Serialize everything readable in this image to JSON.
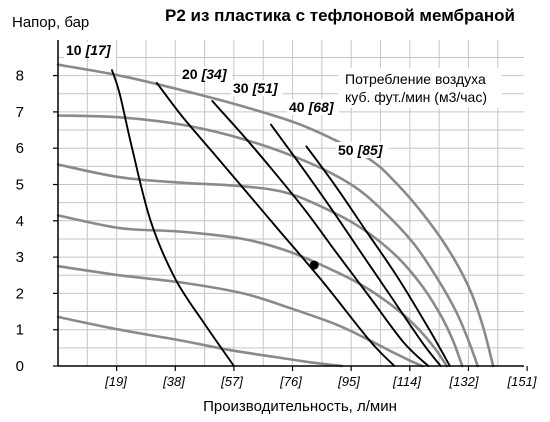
{
  "chart_data": {
    "type": "line",
    "title": "P2 из пластика с тефлоновой мембраной",
    "ylabel": "Напор, бар",
    "xlabel": "Производительность, л/мин",
    "xlim": [
      0,
      151
    ],
    "ylim": [
      0,
      9
    ],
    "grid": true,
    "y_ticks": [
      "0",
      "1",
      "2",
      "3",
      "4",
      "5",
      "6",
      "7",
      "8"
    ],
    "x_ticks": [
      "[19]",
      "[38]",
      "[57]",
      "[76]",
      "[95]",
      "[114]",
      "[132]",
      "[151]"
    ],
    "annotation": {
      "line1": "Потребление воздуха",
      "line2": "куб. фут./мин (м3/час)"
    },
    "pressure_series": [
      {
        "x": [
          0,
          20,
          40,
          60,
          80,
          100,
          110,
          120,
          128,
          134,
          138,
          141
        ],
        "y": [
          8.3,
          8.0,
          7.6,
          7.15,
          6.6,
          5.75,
          5.0,
          4.0,
          3.0,
          2.0,
          1.0,
          0
        ]
      },
      {
        "x": [
          0,
          20,
          40,
          60,
          80,
          95,
          105,
          115,
          123,
          129,
          133,
          136
        ],
        "y": [
          6.9,
          6.85,
          6.65,
          6.25,
          5.65,
          5.0,
          4.3,
          3.4,
          2.4,
          1.5,
          0.7,
          0
        ]
      },
      {
        "x": [
          0,
          20,
          40,
          60,
          75,
          90,
          100,
          110,
          118,
          124,
          128,
          131
        ],
        "y": [
          5.55,
          5.2,
          5.05,
          4.95,
          4.75,
          4.2,
          3.7,
          3.0,
          2.2,
          1.4,
          0.7,
          0
        ]
      },
      {
        "x": [
          0,
          20,
          40,
          60,
          75,
          90,
          100,
          110,
          117,
          122,
          126
        ],
        "y": [
          4.15,
          3.8,
          3.7,
          3.5,
          3.15,
          2.6,
          2.15,
          1.55,
          1.0,
          0.5,
          0
        ]
      },
      {
        "x": [
          0,
          20,
          40,
          60,
          75,
          90,
          100,
          108,
          114,
          118
        ],
        "y": [
          2.75,
          2.5,
          2.3,
          2.0,
          1.6,
          1.15,
          0.75,
          0.4,
          0.15,
          0
        ]
      },
      {
        "x": [
          0,
          20,
          40,
          55,
          70,
          82,
          92
        ],
        "y": [
          1.35,
          1.0,
          0.7,
          0.45,
          0.25,
          0.1,
          0
        ]
      }
    ],
    "air_series": [
      {
        "label_main": "10",
        "label_alt": "[17]",
        "x": [
          17.5,
          20,
          24,
          30,
          38,
          48,
          57
        ],
        "y": [
          8.15,
          7.5,
          6.0,
          4.0,
          2.4,
          1.1,
          0
        ]
      },
      {
        "label_main": "20",
        "label_alt": "[34]",
        "x": [
          32,
          40,
          50,
          60,
          72,
          86,
          101,
          109
        ],
        "y": [
          7.8,
          6.9,
          5.9,
          4.9,
          3.7,
          2.3,
          0.7,
          0
        ]
      },
      {
        "label_main": "30",
        "label_alt": "[51]",
        "x": [
          50,
          60,
          70,
          80,
          90,
          101,
          112,
          120
        ],
        "y": [
          7.3,
          6.35,
          5.35,
          4.3,
          3.15,
          1.9,
          0.65,
          0
        ]
      },
      {
        "label_main": "40",
        "label_alt": "[68]",
        "x": [
          69,
          78,
          88,
          98,
          108,
          118,
          124
        ],
        "y": [
          6.65,
          5.6,
          4.4,
          3.15,
          1.9,
          0.65,
          0
        ]
      },
      {
        "label_main": "50",
        "label_alt": "[85]",
        "x": [
          80.5,
          90,
          100,
          110,
          120,
          127
        ],
        "y": [
          6.05,
          4.95,
          3.7,
          2.45,
          1.05,
          0
        ]
      }
    ],
    "marker": {
      "x": 83,
      "y": 2.78
    },
    "colors": {
      "pressure_line": "#8a8a8a",
      "air_line": "#000000",
      "grid": "#c6c6c6",
      "frame": "#000000"
    }
  }
}
